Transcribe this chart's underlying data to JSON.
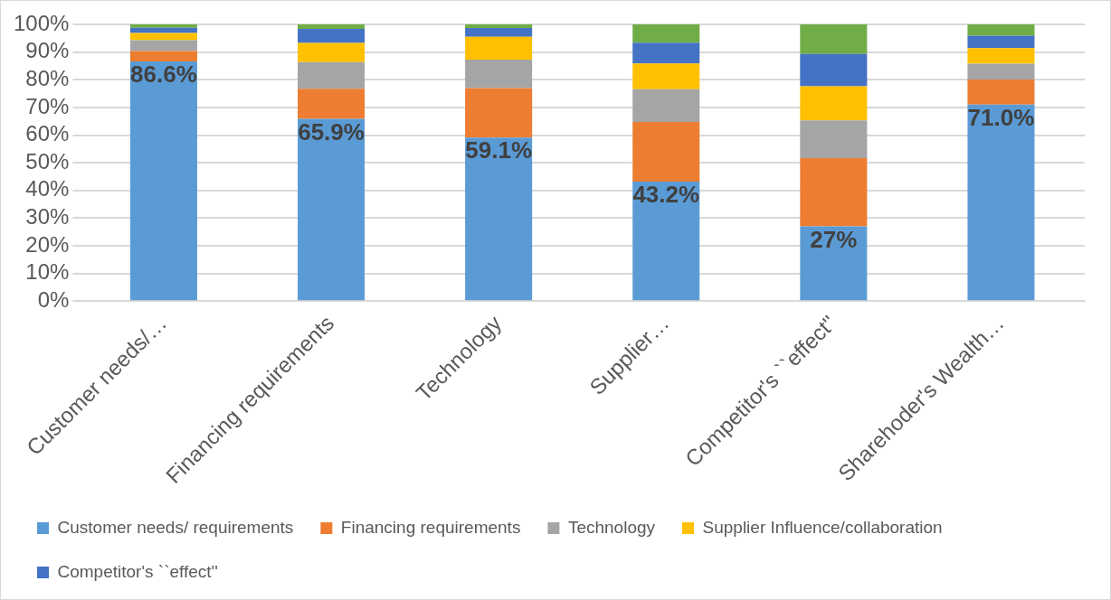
{
  "chart_data": {
    "type": "bar",
    "stacked": true,
    "categories": [
      "Customer needs/…",
      "Financing requirements",
      "Technology",
      "Supplier…",
      "Competitor's ``effect''",
      "Sharehoder's Wealth…"
    ],
    "series": [
      {
        "name": "Customer needs/ requirements",
        "color": "#5b9bd5",
        "values": [
          86.6,
          65.9,
          59.1,
          43.2,
          27,
          71.0
        ],
        "value_labels": [
          "86.6%",
          "65.9%",
          "59.1%",
          "43.2%",
          "27%",
          "71.0%"
        ]
      },
      {
        "name": "Financing requirements",
        "color": "#ed7d31",
        "values": [
          3.8,
          10.8,
          17.9,
          21.5,
          24.7,
          9.1
        ]
      },
      {
        "name": "Technology",
        "color": "#a5a5a5",
        "values": [
          3.9,
          9.7,
          10.3,
          11.9,
          13.6,
          5.7
        ]
      },
      {
        "name": "Supplier Influence/collaboration",
        "color": "#ffc000",
        "values": [
          2.6,
          6.9,
          8.2,
          9.3,
          12.3,
          5.6
        ]
      },
      {
        "name": "Competitor's ``effect''",
        "color": "#4472c4",
        "values": [
          1.9,
          5.1,
          3.2,
          7.5,
          11.7,
          4.5
        ]
      },
      {
        "color": "#70ad47",
        "values": [
          1.2,
          1.6,
          1.3,
          6.6,
          10.7,
          4.1
        ]
      }
    ],
    "ylim": [
      0,
      100
    ],
    "yticks": [
      {
        "value": 0,
        "label": "0%"
      },
      {
        "value": 10,
        "label": "10%"
      },
      {
        "value": 20,
        "label": "20%"
      },
      {
        "value": 30,
        "label": "30%"
      },
      {
        "value": 40,
        "label": "40%"
      },
      {
        "value": 50,
        "label": "50%"
      },
      {
        "value": 60,
        "label": "60%"
      },
      {
        "value": 70,
        "label": "70%"
      },
      {
        "value": 80,
        "label": "80%"
      },
      {
        "value": 90,
        "label": "90%"
      },
      {
        "value": 100,
        "label": "100%"
      }
    ],
    "grid": "y",
    "legend": "bottom"
  }
}
